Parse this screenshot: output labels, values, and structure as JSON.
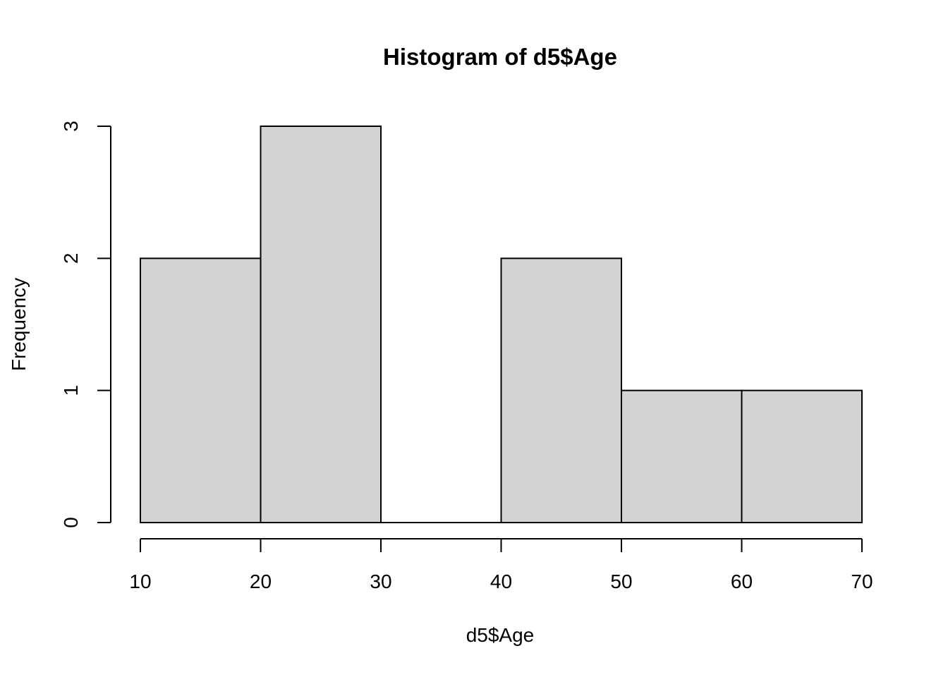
{
  "chart_data": {
    "type": "bar",
    "title": "Histogram of d5$Age",
    "xlabel": "d5$Age",
    "ylabel": "Frequency",
    "bins": [
      {
        "from": 10,
        "to": 20,
        "count": 2
      },
      {
        "from": 20,
        "to": 30,
        "count": 3
      },
      {
        "from": 30,
        "to": 40,
        "count": 0
      },
      {
        "from": 40,
        "to": 50,
        "count": 2
      },
      {
        "from": 50,
        "to": 60,
        "count": 1
      },
      {
        "from": 60,
        "to": 70,
        "count": 1
      }
    ],
    "xlim": [
      10,
      70
    ],
    "ylim": [
      0,
      3
    ],
    "x_ticks": [
      "10",
      "20",
      "30",
      "40",
      "50",
      "60",
      "70"
    ],
    "y_ticks": [
      "0",
      "1",
      "2",
      "3"
    ],
    "grid": false,
    "bar_color": "#d3d3d3"
  }
}
